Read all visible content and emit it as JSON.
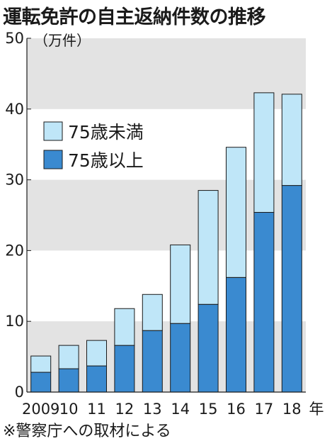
{
  "title": "運転免許の自主返納件数の推移",
  "source": "※警察庁への取材による",
  "colors": {
    "band": "#e3e3e3",
    "under75": "#bfe6f8",
    "over75": "#3a8ad0",
    "stroke": "#1a1a1a"
  },
  "chart_data": {
    "type": "bar",
    "stacked": true,
    "unit_label": "（万件）",
    "x_suffix": "年",
    "categories": [
      "2009",
      "10",
      "11",
      "12",
      "13",
      "14",
      "15",
      "16",
      "17",
      "18"
    ],
    "series": [
      {
        "name": "75歳以上",
        "values": [
          2.8,
          3.3,
          3.7,
          6.6,
          8.7,
          9.7,
          12.4,
          16.2,
          25.4,
          29.2
        ]
      },
      {
        "name": "75歳未満",
        "values": [
          2.3,
          3.3,
          3.6,
          5.2,
          5.1,
          11.1,
          16.1,
          18.4,
          16.9,
          12.9
        ]
      }
    ],
    "legend": [
      "75歳未満",
      "75歳以上"
    ],
    "ylim": [
      0,
      50
    ],
    "yticks": [
      0,
      10,
      20,
      30,
      40,
      50
    ],
    "legend_position": "top-left",
    "background_bands": true
  }
}
